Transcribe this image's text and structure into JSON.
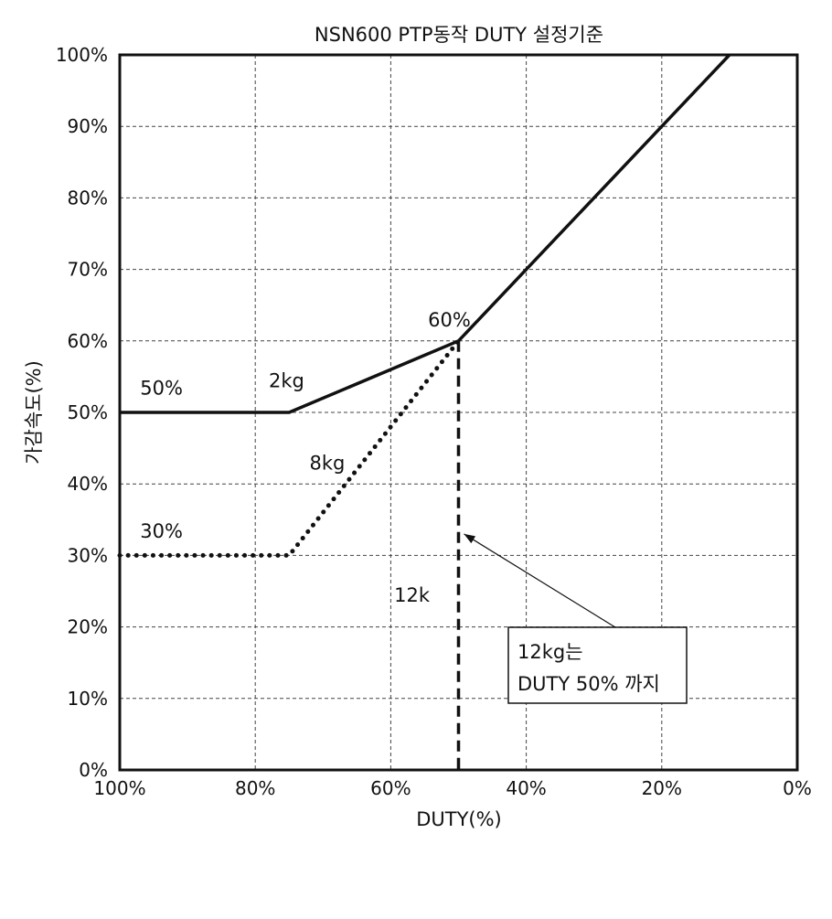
{
  "chart_data": {
    "type": "line",
    "title": "NSN600 PTP동작 DUTY 설정기준",
    "xlabel": "DUTY(%)",
    "ylabel": "가감속도(%)",
    "x_reversed": true,
    "xlim": [
      100,
      0
    ],
    "ylim": [
      0,
      100
    ],
    "grid": true,
    "xticks": [
      "100%",
      "80%",
      "60%",
      "40%",
      "20%",
      "0%"
    ],
    "yticks": [
      "0%",
      "10%",
      "20%",
      "30%",
      "40%",
      "50%",
      "60%",
      "70%",
      "80%",
      "90%",
      "100%"
    ],
    "series": [
      {
        "name": "2kg",
        "style": "solid",
        "x": [
          100,
          75,
          50,
          10
        ],
        "y": [
          50,
          50,
          60,
          100
        ]
      },
      {
        "name": "8kg",
        "style": "dotted",
        "x": [
          100,
          75,
          50
        ],
        "y": [
          30,
          30,
          60
        ]
      },
      {
        "name": "12k",
        "style": "dashed",
        "x": [
          50,
          50
        ],
        "y": [
          60,
          0
        ]
      }
    ],
    "annotations": [
      {
        "text": "50%",
        "x": 97,
        "y": 52.5
      },
      {
        "text": "2kg",
        "x": 78,
        "y": 53.5
      },
      {
        "text": "60%",
        "x": 54.5,
        "y": 62
      },
      {
        "text": "8kg",
        "x": 72,
        "y": 42
      },
      {
        "text": "30%",
        "x": 97,
        "y": 32.5
      },
      {
        "text": "12k",
        "x": 59.5,
        "y": 23.5
      }
    ],
    "callout": {
      "lines": [
        "12kg는",
        "DUTY 50% 까지"
      ],
      "arrow_to": {
        "x": 50,
        "y": 33
      }
    }
  }
}
